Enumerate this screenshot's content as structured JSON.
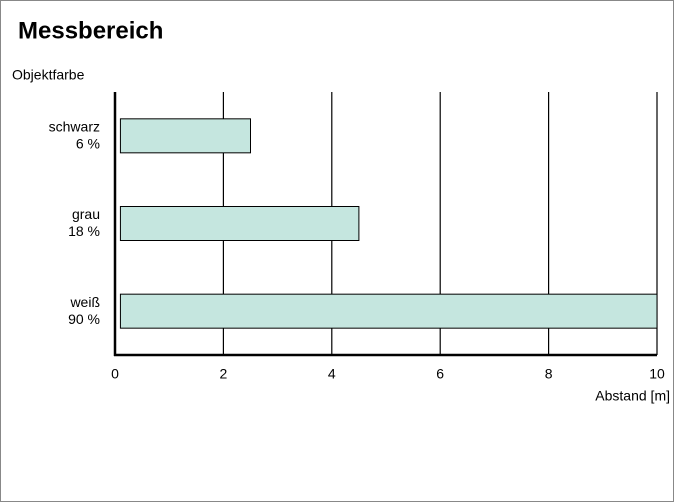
{
  "chart_data": {
    "type": "range-bar",
    "title": "Messbereich",
    "y_label": "Objektfarbe",
    "x_label": "Abstand [m]",
    "categories": [
      [
        "schwarz",
        "6 %"
      ],
      [
        "grau",
        "18 %"
      ],
      [
        "weiß",
        "90 %"
      ]
    ],
    "values": [
      [
        0.1,
        2.5
      ],
      [
        0.1,
        4.5
      ],
      [
        0.1,
        10
      ]
    ],
    "color": "#c5e6df",
    "xlim": [
      0,
      10
    ],
    "xticks": [
      0,
      2,
      4,
      6,
      8,
      10
    ],
    "grid": true
  }
}
